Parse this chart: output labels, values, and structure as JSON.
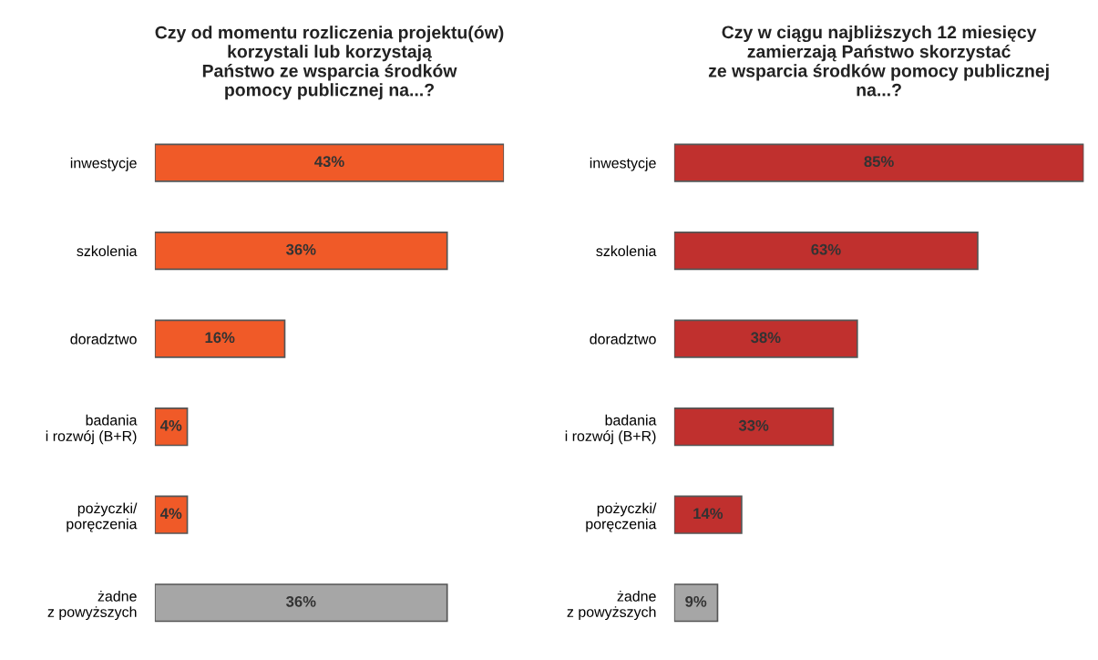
{
  "chart_data": [
    {
      "type": "bar",
      "orientation": "horizontal",
      "legend": false,
      "grid": false,
      "title": "Czy od momentu rozliczenia projektu(ów)\nkorzystali lub korzystają\nPaństwo ze wsparcia środków\npomocy publicznej na...?",
      "categories": [
        "inwestycje",
        "szkolenia",
        "doradztwo",
        "badania\ni rozwój (B+R)",
        "pożyczki/\nporęczenia",
        "żadne\nz powyższych"
      ],
      "values": [
        43,
        36,
        16,
        4,
        4,
        36
      ],
      "value_labels": [
        "43%",
        "36%",
        "16%",
        "4%",
        "4%",
        "36%"
      ],
      "colors": [
        "#f05a28",
        "#f05a28",
        "#f05a28",
        "#f05a28",
        "#f05a28",
        "#a6a6a6"
      ]
    },
    {
      "type": "bar",
      "orientation": "horizontal",
      "legend": false,
      "grid": false,
      "title": "Czy w ciągu najbliższych 12 miesięcy\nzamierzają Państwo skorzystać\nze wsparcia środków pomocy publicznej\nna...?",
      "categories": [
        "inwestycje",
        "szkolenia",
        "doradztwo",
        "badania\ni rozwój (B+R)",
        "pożyczki/\nporęczenia",
        "żadne\nz powyższych"
      ],
      "values": [
        85,
        63,
        38,
        33,
        14,
        9
      ],
      "value_labels": [
        "85%",
        "63%",
        "38%",
        "33%",
        "14%",
        "9%"
      ],
      "colors": [
        "#c0302e",
        "#c0302e",
        "#c0302e",
        "#c0302e",
        "#c0302e",
        "#a6a6a6"
      ]
    }
  ]
}
